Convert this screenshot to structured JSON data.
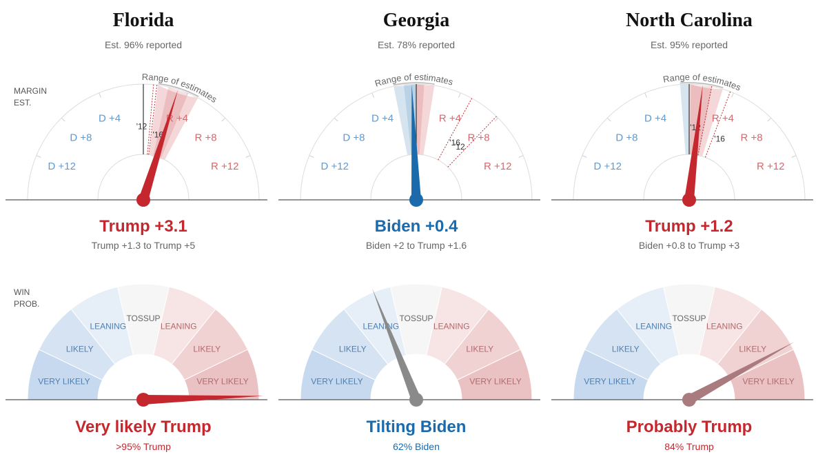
{
  "labels": {
    "margin_est": "MARGIN\nEST.",
    "win_prob": "WIN\nPROB.",
    "range_of_estimates": "Range of estimates"
  },
  "colors": {
    "dem": "#1a6aac",
    "rep": "#c4282e",
    "neutral": "#8a8a8a",
    "lean_rep_needle": "#a97b7e"
  },
  "margin_ticks": [
    {
      "label": "D +12",
      "value": -12
    },
    {
      "label": "D +8",
      "value": -8
    },
    {
      "label": "D +4",
      "value": -4
    },
    {
      "label": "R +4",
      "value": 4
    },
    {
      "label": "R +8",
      "value": 8
    },
    {
      "label": "R +12",
      "value": 12
    }
  ],
  "win_zones": [
    {
      "label": "VERY LIKELY",
      "party": "dem"
    },
    {
      "label": "LIKELY",
      "party": "dem"
    },
    {
      "label": "LEANING",
      "party": "dem"
    },
    {
      "label": "TOSSUP",
      "party": "none"
    },
    {
      "label": "LEANING",
      "party": "rep"
    },
    {
      "label": "LIKELY",
      "party": "rep"
    },
    {
      "label": "VERY LIKELY",
      "party": "rep"
    }
  ],
  "states": [
    {
      "name": "Florida",
      "reported": "Est. 96% reported",
      "margin_label": "Trump +3.1",
      "margin_range": "Trump +1.3 to Trump +5",
      "leader": "rep",
      "win_label": "Very likely Trump",
      "win_sub": ">95% Trump",
      "win_leader": "rep",
      "win_color": "#c4282e"
    },
    {
      "name": "Georgia",
      "reported": "Est. 78% reported",
      "margin_label": "Biden +0.4",
      "margin_range": "Biden +2 to Trump +1.6",
      "leader": "dem",
      "win_label": "Tilting Biden",
      "win_sub": "62% Biden",
      "win_leader": "dem",
      "win_color": "#8a8a8a"
    },
    {
      "name": "North Carolina",
      "reported": "Est. 95% reported",
      "margin_label": "Trump +1.2",
      "margin_range": "Biden +0.8 to Trump +3",
      "leader": "rep",
      "win_label": "Probably Trump",
      "win_sub": "84% Trump",
      "win_leader": "rep",
      "win_color": "#a97b7e"
    }
  ],
  "chart_data": [
    {
      "type": "gauge",
      "state": "Florida",
      "margin_estimate": 3.1,
      "margin_range": [
        1.3,
        5
      ],
      "past_results": [
        {
          "year": "'12",
          "margin": 0.9
        },
        {
          "year": "'16",
          "margin": 1.2
        }
      ],
      "margin_axis": {
        "min": -16,
        "max": 16
      },
      "win_probability_rep": 0.99
    },
    {
      "type": "gauge",
      "state": "Georgia",
      "margin_estimate": -0.4,
      "margin_range": [
        -2,
        1.6
      ],
      "past_results": [
        {
          "year": "'12",
          "margin": 7.8
        },
        {
          "year": "'16",
          "margin": 5.1
        }
      ],
      "margin_axis": {
        "min": -16,
        "max": 16
      },
      "win_probability_rep": 0.38
    },
    {
      "type": "gauge",
      "state": "North Carolina",
      "margin_estimate": 1.2,
      "margin_range": [
        -0.8,
        3
      ],
      "past_results": [
        {
          "year": "'12",
          "margin": 2.0
        },
        {
          "year": "'16",
          "margin": 3.7
        }
      ],
      "margin_axis": {
        "min": -16,
        "max": 16
      },
      "win_probability_rep": 0.84
    }
  ]
}
